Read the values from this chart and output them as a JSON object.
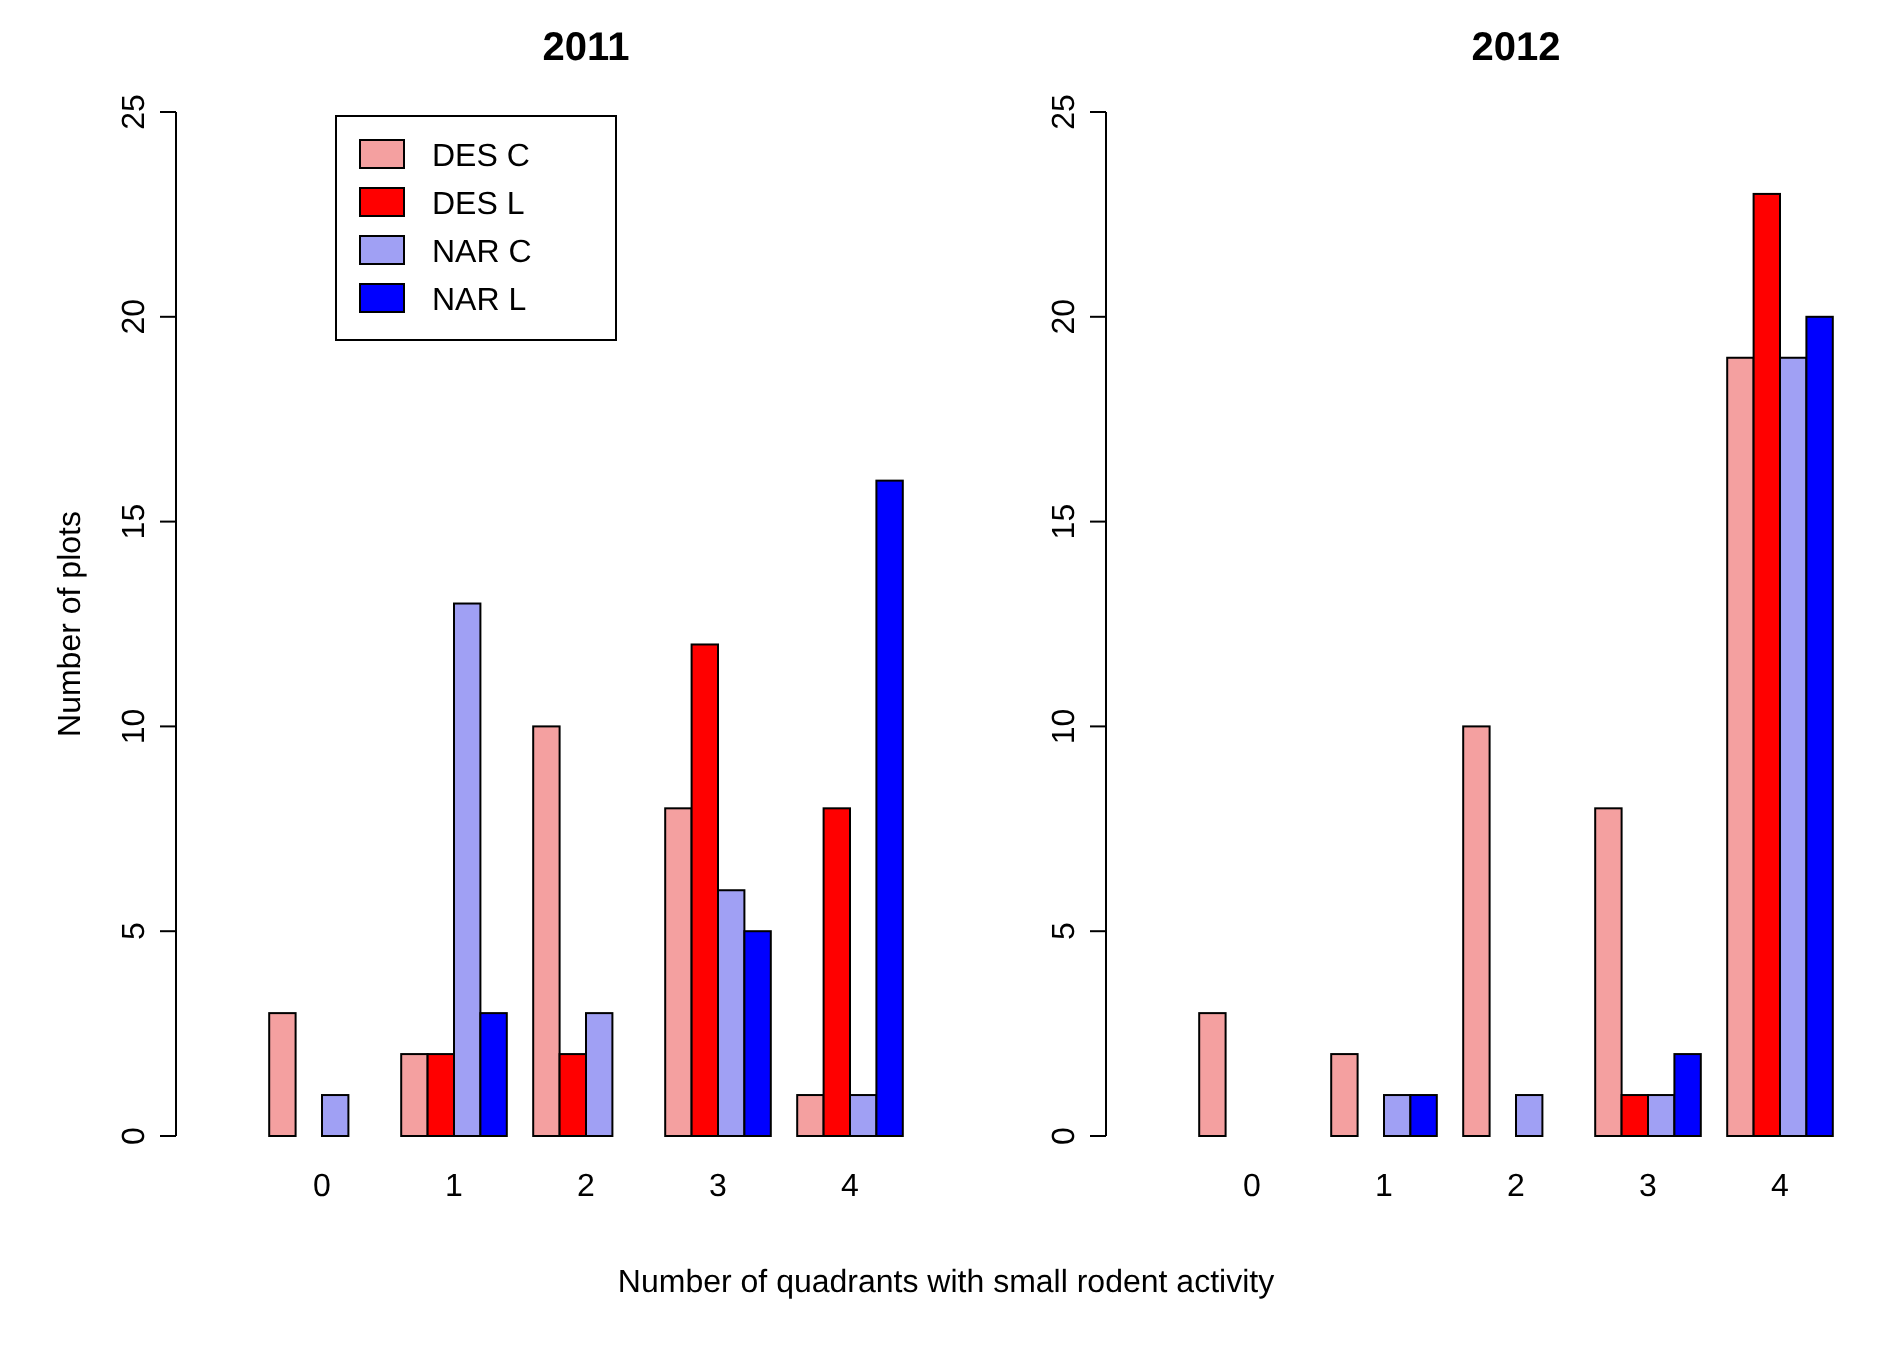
{
  "chart_data": [
    {
      "type": "bar",
      "title": "2011",
      "xlabel": "Number of quadrants with small rodent activity",
      "ylabel": "Number of plots",
      "categories": [
        "0",
        "1",
        "2",
        "3",
        "4"
      ],
      "ylim": [
        0,
        25
      ],
      "yticks": [
        0,
        5,
        10,
        15,
        20,
        25
      ],
      "legend": "top left",
      "series": [
        {
          "name": "DES C",
          "color": "#f4a0a0",
          "values": [
            3,
            2,
            10,
            8,
            1
          ]
        },
        {
          "name": "DES L",
          "color": "#ff0000",
          "values": [
            0,
            2,
            2,
            12,
            8
          ]
        },
        {
          "name": "NAR C",
          "color": "#a0a0f4",
          "values": [
            1,
            13,
            3,
            6,
            1
          ]
        },
        {
          "name": "NAR L",
          "color": "#0000ff",
          "values": [
            0,
            3,
            0,
            5,
            16
          ]
        }
      ]
    },
    {
      "type": "bar",
      "title": "2012",
      "categories": [
        "0",
        "1",
        "2",
        "3",
        "4"
      ],
      "ylim": [
        0,
        25
      ],
      "yticks": [
        0,
        5,
        10,
        15,
        20,
        25
      ],
      "series": [
        {
          "color": "#f4a0a0",
          "values": [
            3,
            2,
            10,
            8,
            19
          ]
        },
        {
          "color": "#ff0000",
          "values": [
            0,
            0,
            0,
            1,
            23
          ]
        },
        {
          "color": "#a0a0f4",
          "values": [
            0,
            1,
            1,
            1,
            19
          ]
        },
        {
          "color": "#0000ff",
          "values": [
            0,
            1,
            0,
            2,
            20
          ]
        }
      ]
    }
  ]
}
